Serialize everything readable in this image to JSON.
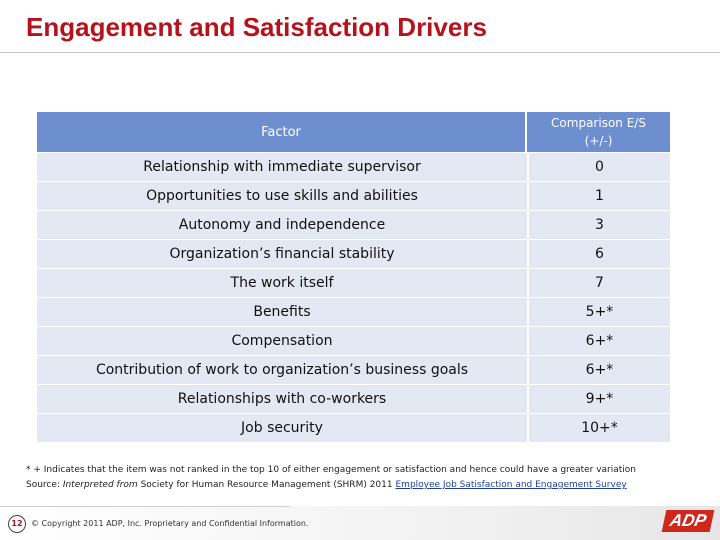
{
  "title": "Engagement and Satisfaction Drivers",
  "table": {
    "header_factor": "Factor",
    "header_comparison_line1": "Comparison E/S",
    "header_comparison_line2": "(+/-)",
    "rows": [
      {
        "factor": "Relationship with immediate supervisor",
        "comparison": "0"
      },
      {
        "factor": "Opportunities to use skills and abilities",
        "comparison": "1"
      },
      {
        "factor": "Autonomy and independence",
        "comparison": "3"
      },
      {
        "factor": "Organization’s financial stability",
        "comparison": "6"
      },
      {
        "factor": "The work itself",
        "comparison": "7"
      },
      {
        "factor": "Benefits",
        "comparison": "5+*"
      },
      {
        "factor": "Compensation",
        "comparison": "6+*"
      },
      {
        "factor": "Contribution of work to organization’s business goals",
        "comparison": "6+*"
      },
      {
        "factor": "Relationships with co-workers",
        "comparison": "9+*"
      },
      {
        "factor": "Job security",
        "comparison": "10+*"
      }
    ]
  },
  "footnote": {
    "line1": "* + Indicates that the item was not ranked in the top 10 of either engagement or satisfaction and hence could have a greater variation",
    "source_label": "Source:",
    "source_italic": "Interpreted from",
    "source_text": "Society for Human Resource Management (SHRM) 2011",
    "source_link": "Employee Job Satisfaction and Engagement Survey"
  },
  "footer": {
    "page_number": "12",
    "copyright": "© Copyright 2011 ADP, Inc. Proprietary and Confidential Information.",
    "logo_text": "ADP"
  },
  "colors": {
    "title": "#b5121b",
    "header_bg": "#6e8fcf",
    "row_bg": "#e3e8f2",
    "logo": "#d0271d"
  }
}
